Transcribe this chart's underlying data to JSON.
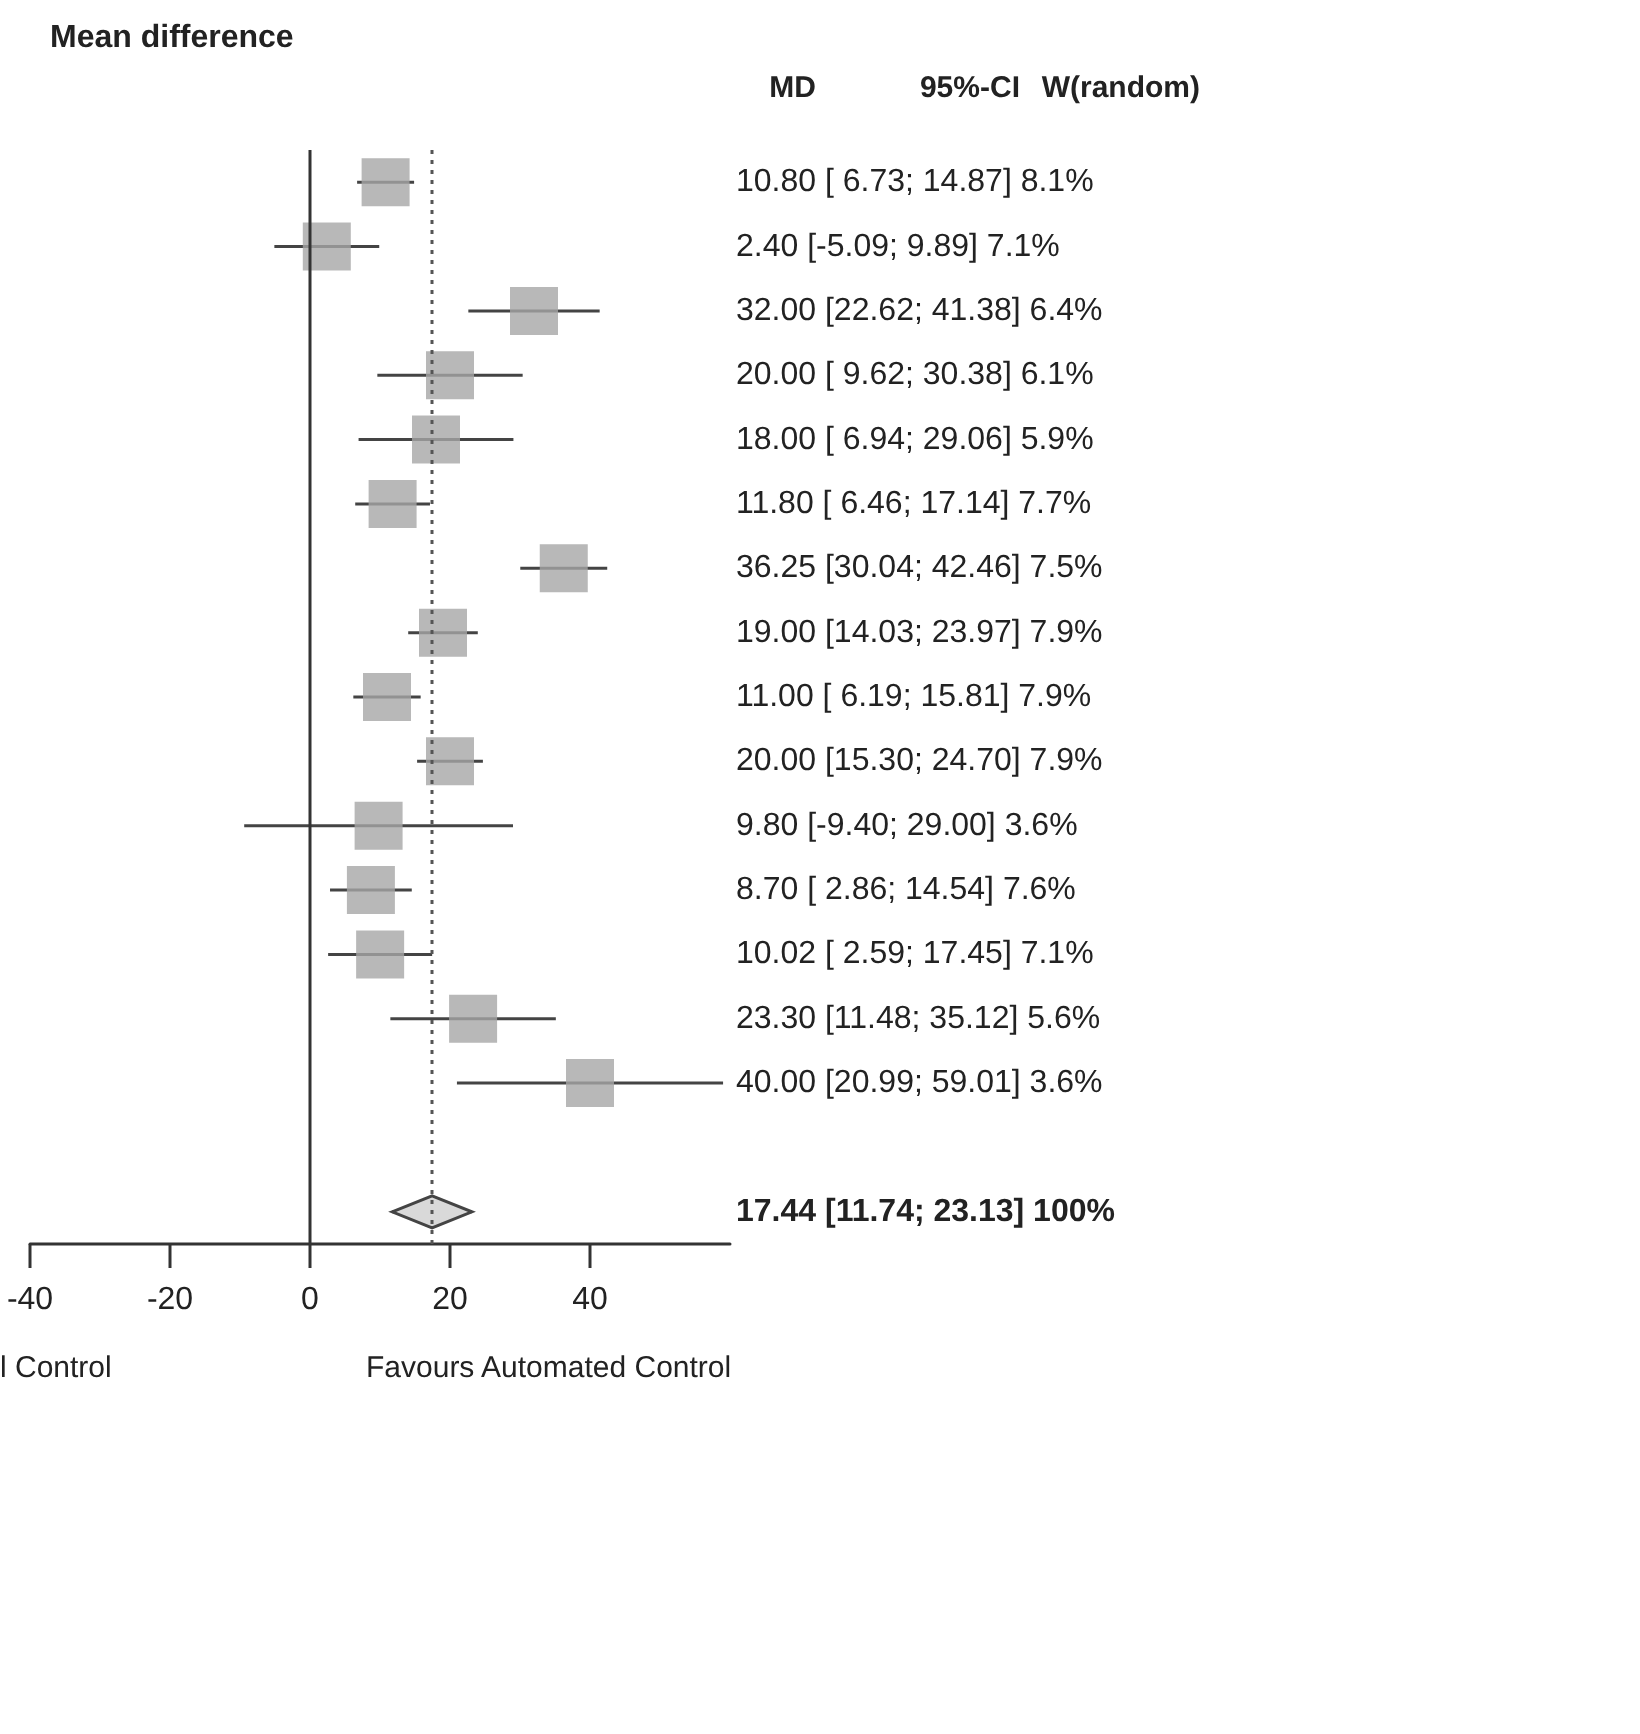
{
  "chart_data": {
    "type": "scatter",
    "orientation": "horizontal",
    "title": "Mean difference",
    "categories": [
      null,
      null,
      null,
      null,
      null,
      null,
      null,
      null,
      null,
      null,
      null,
      null,
      null,
      null,
      null,
      null,
      null
    ],
    "series": [
      {
        "marker": "square",
        "color": "#a6a6a6",
        "values": [
          10.8,
          2.4,
          32.0,
          20.0,
          18.0,
          11.8,
          36.25,
          19.0,
          11.0,
          20.0,
          9.8,
          8.7,
          10.02,
          23.3,
          40.0,
          null,
          null
        ],
        "errors": [
          [
            6.73,
            14.87
          ],
          [
            -5.09,
            9.89
          ],
          [
            22.62,
            41.38
          ],
          [
            9.62,
            30.38
          ],
          [
            6.94,
            29.06
          ],
          [
            6.46,
            17.14
          ],
          [
            30.04,
            42.46
          ],
          [
            14.03,
            23.97
          ],
          [
            6.19,
            15.81
          ],
          [
            15.3,
            24.7
          ],
          [
            -9.4,
            29.0
          ],
          [
            2.86,
            14.54
          ],
          [
            2.59,
            17.45
          ],
          [
            11.48,
            35.12
          ],
          [
            20.99,
            59.01
          ],
          null,
          null
        ]
      },
      {
        "marker": "diamond",
        "color": "#d9d9d9",
        "values": [
          null,
          null,
          null,
          null,
          null,
          null,
          null,
          null,
          null,
          null,
          null,
          null,
          null,
          null,
          null,
          null,
          17.44
        ],
        "errors": [
          null,
          null,
          null,
          null,
          null,
          null,
          null,
          null,
          null,
          null,
          null,
          null,
          null,
          null,
          null,
          null,
          [
            11.74,
            23.13
          ]
        ]
      }
    ],
    "xlim": [
      -40,
      60
    ],
    "xticks": [
      -40,
      -20,
      0,
      20,
      40
    ],
    "ref_lines": [
      {
        "axis": "x",
        "value": 0,
        "line_style": "solid",
        "color": "#333333"
      },
      {
        "axis": "x",
        "value": 17.44,
        "line_style": "dotted",
        "color": "#555555"
      }
    ],
    "annotations": [
      "MD",
      "95%-CI",
      "W(random)",
      "10.80 [ 6.73; 14.87] 8.1%",
      "2.40 [-5.09; 9.89] 7.1%",
      "32.00 [22.62; 41.38] 6.4%",
      "20.00 [ 9.62; 30.38] 6.1%",
      "18.00 [ 6.94; 29.06] 5.9%",
      "11.80 [ 6.46; 17.14] 7.7%",
      "36.25 [30.04; 42.46] 7.5%",
      "19.00 [14.03; 23.97] 7.9%",
      "11.00 [ 6.19; 15.81] 7.9%",
      "20.00 [15.30; 24.70] 7.9%",
      "9.80 [-9.40; 29.00] 3.6%",
      "8.70 [ 2.86; 14.54] 7.6%",
      "10.02 [ 2.59; 17.45] 7.1%",
      "23.30 [11.48; 35.12] 5.6%",
      "40.00 [20.99; 59.01] 3.6%",
      "17.44 [11.74; 23.13] 100%",
      "l Control",
      "Favours Automated Control"
    ],
    "grid": false
  }
}
